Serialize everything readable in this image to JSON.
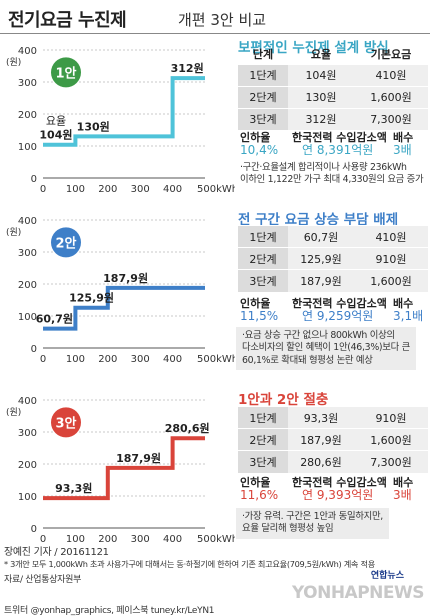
{
  "header": {
    "title_main": "전기요금 누진제",
    "title_sub": "개편 3안 비교"
  },
  "colors": {
    "plan1": "#4fc3d9",
    "plan2": "#3e7fc8",
    "plan3": "#d9443a",
    "green": "#3d9a47",
    "label_fill": "#ffffff"
  },
  "chart_data": [
    {
      "type": "line",
      "badge": "1안",
      "ylabel": "(원)",
      "ylim": [
        0,
        400
      ],
      "yticks": [
        "400",
        "300",
        "200",
        "100",
        "0"
      ],
      "xticks": [
        "0",
        "100",
        "200",
        "300",
        "400",
        "500kWh"
      ],
      "xlim": [
        0,
        500
      ],
      "x": [
        0,
        100,
        100,
        200,
        200,
        400,
        400,
        500
      ],
      "y": [
        104,
        104,
        130,
        130,
        130,
        130,
        312,
        312
      ],
      "labels": [
        "요율",
        "104원",
        "130원",
        "312원"
      ],
      "label_values": [
        104,
        130,
        312
      ],
      "label_x": [
        40,
        155,
        445
      ],
      "prefix_label": "요율"
    },
    {
      "type": "line",
      "badge": "2안",
      "ylabel": "(원)",
      "ylim": [
        0,
        400
      ],
      "yticks": [
        "400",
        "300",
        "200",
        "100",
        "0"
      ],
      "xticks": [
        "0",
        "100",
        "200",
        "300",
        "400",
        "500kWh"
      ],
      "xlim": [
        0,
        500
      ],
      "x": [
        0,
        100,
        100,
        200,
        200,
        500
      ],
      "y": [
        60.7,
        60.7,
        125.9,
        125.9,
        187.9,
        187.9
      ],
      "labels": [
        "60,7원",
        "125,9원",
        "187,9원"
      ],
      "label_values": [
        60.7,
        125.9,
        187.9
      ],
      "label_x": [
        35,
        150,
        255
      ]
    },
    {
      "type": "line",
      "badge": "3안",
      "ylabel": "(원)",
      "ylim": [
        0,
        400
      ],
      "yticks": [
        "400",
        "300",
        "200",
        "100",
        "0"
      ],
      "xticks": [
        "0",
        "100",
        "200",
        "300",
        "400",
        "500kWh"
      ],
      "xlim": [
        0,
        500
      ],
      "x": [
        0,
        200,
        200,
        400,
        400,
        500
      ],
      "y": [
        93.3,
        93.3,
        187.9,
        187.9,
        280.6,
        280.6
      ],
      "labels": [
        "93,3원",
        "187,9원",
        "280,6원"
      ],
      "label_values": [
        93.3,
        187.9,
        280.6
      ],
      "label_x": [
        95,
        295,
        445
      ]
    }
  ],
  "plans": [
    {
      "title": "보편적인 누진제 설계 방식",
      "headers": [
        "단계",
        "요율",
        "기본요금"
      ],
      "rows": [
        [
          "1단계",
          "104원",
          "410원"
        ],
        [
          "2단계",
          "130원",
          "1,600원"
        ],
        [
          "3단계",
          "312원",
          "7,300원"
        ]
      ],
      "stats": [
        {
          "label": "인하율",
          "value": "10,4%"
        },
        {
          "label": "한국전력 수입감소액",
          "value": "연 8,391억원"
        },
        {
          "label": "배수",
          "value": "3배"
        }
      ],
      "note": [
        "·구간·요율설계 합리적이나 사용량 236kWh",
        "이하인 1,122만 가구 최대 4,330원의 요금 증가"
      ]
    },
    {
      "title": "전 구간 요금 상승 부담 배제",
      "headers": [],
      "rows": [
        [
          "1단계",
          "60,7원",
          "410원"
        ],
        [
          "2단계",
          "125,9원",
          "910원"
        ],
        [
          "3단계",
          "187,9원",
          "1,600원"
        ]
      ],
      "stats": [
        {
          "label": "인하율",
          "value": "11,5%"
        },
        {
          "label": "한국전력 수입감소액",
          "value": "연 9,259억원"
        },
        {
          "label": "배수",
          "value": "3,1배"
        }
      ],
      "note": [
        "·요금 상승 구간 없으나 800kWh 이상의",
        "다소비자의 할인 혜택이 1안(46,3%)보다 큰",
        "60,1%로 확대돼 형평성 논란 예상"
      ]
    },
    {
      "title": "1안과 2안 절충",
      "headers": [],
      "rows": [
        [
          "1단계",
          "93,3원",
          "910원"
        ],
        [
          "2단계",
          "187,9원",
          "1,600원"
        ],
        [
          "3단계",
          "280,6원",
          "7,300원"
        ]
      ],
      "stats": [
        {
          "label": "인하율",
          "value": "11,6%"
        },
        {
          "label": "한국전력 수입감소액",
          "value": "연 9,393억원"
        },
        {
          "label": "배수",
          "value": "3배"
        }
      ],
      "note": [
        "·가장 유력. 구간은 1안과 동일하지만,",
        "요율 달리해 형평성 높임"
      ]
    }
  ],
  "footer": {
    "byline": "장예진 기자 / 20161121",
    "footnote": "* 3개안 모두 1,000kWh 초과 사용가구에 대해서는 동·하절기에 한하여 기존 최고요율(709,5원/kWh) 계속 적용",
    "source": "자료/ 산업통상자원부",
    "social": "트위터 @yonhap_graphics, 페이스북 tuney.kr/LeYN1",
    "watermark": "YONHAPNEWS",
    "logo": "연합뉴스"
  }
}
